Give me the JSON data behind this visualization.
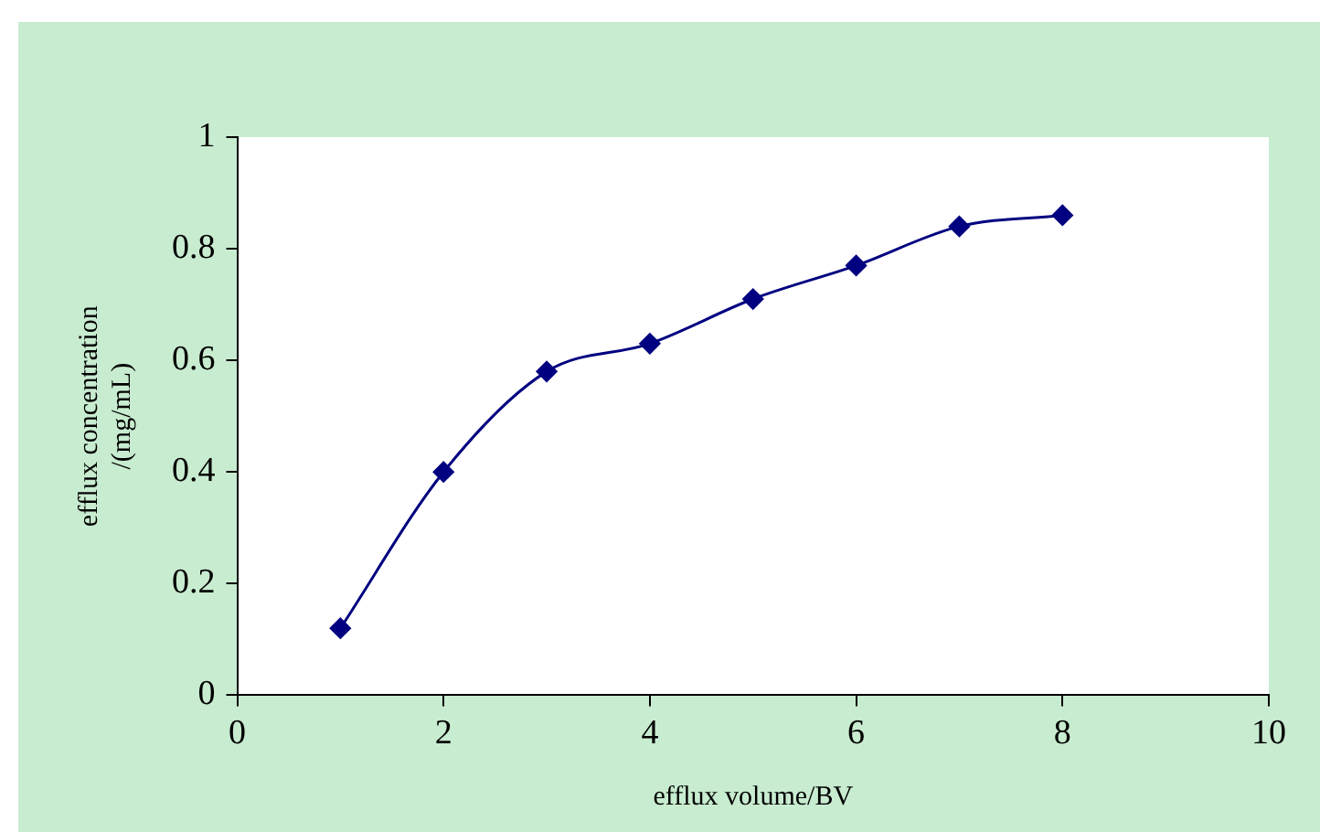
{
  "chart_data": {
    "type": "line",
    "xlabel": "efflux volume/BV",
    "ylabel": "efflux concentration\n/(mg/mL)",
    "x": [
      1,
      2,
      3,
      4,
      5,
      6,
      7,
      8
    ],
    "series": [
      {
        "color": "#000080",
        "values": [
          0.12,
          0.4,
          0.58,
          0.63,
          0.71,
          0.77,
          0.84,
          0.86
        ]
      }
    ],
    "xlim": [
      0,
      10
    ],
    "xticks": [
      0,
      2,
      4,
      6,
      8,
      10
    ],
    "ylim": [
      0,
      1
    ],
    "yticks": [
      0,
      {
        "value": 0.2,
        "label": "0.2"
      },
      {
        "value": 0.4,
        "label": "0.4"
      },
      {
        "value": 0.6,
        "label": "0.6"
      },
      {
        "value": 0.8,
        "label": "0.8"
      },
      1
    ],
    "grid": false,
    "legend": false,
    "marker": "diamond",
    "line_style": "solid"
  }
}
